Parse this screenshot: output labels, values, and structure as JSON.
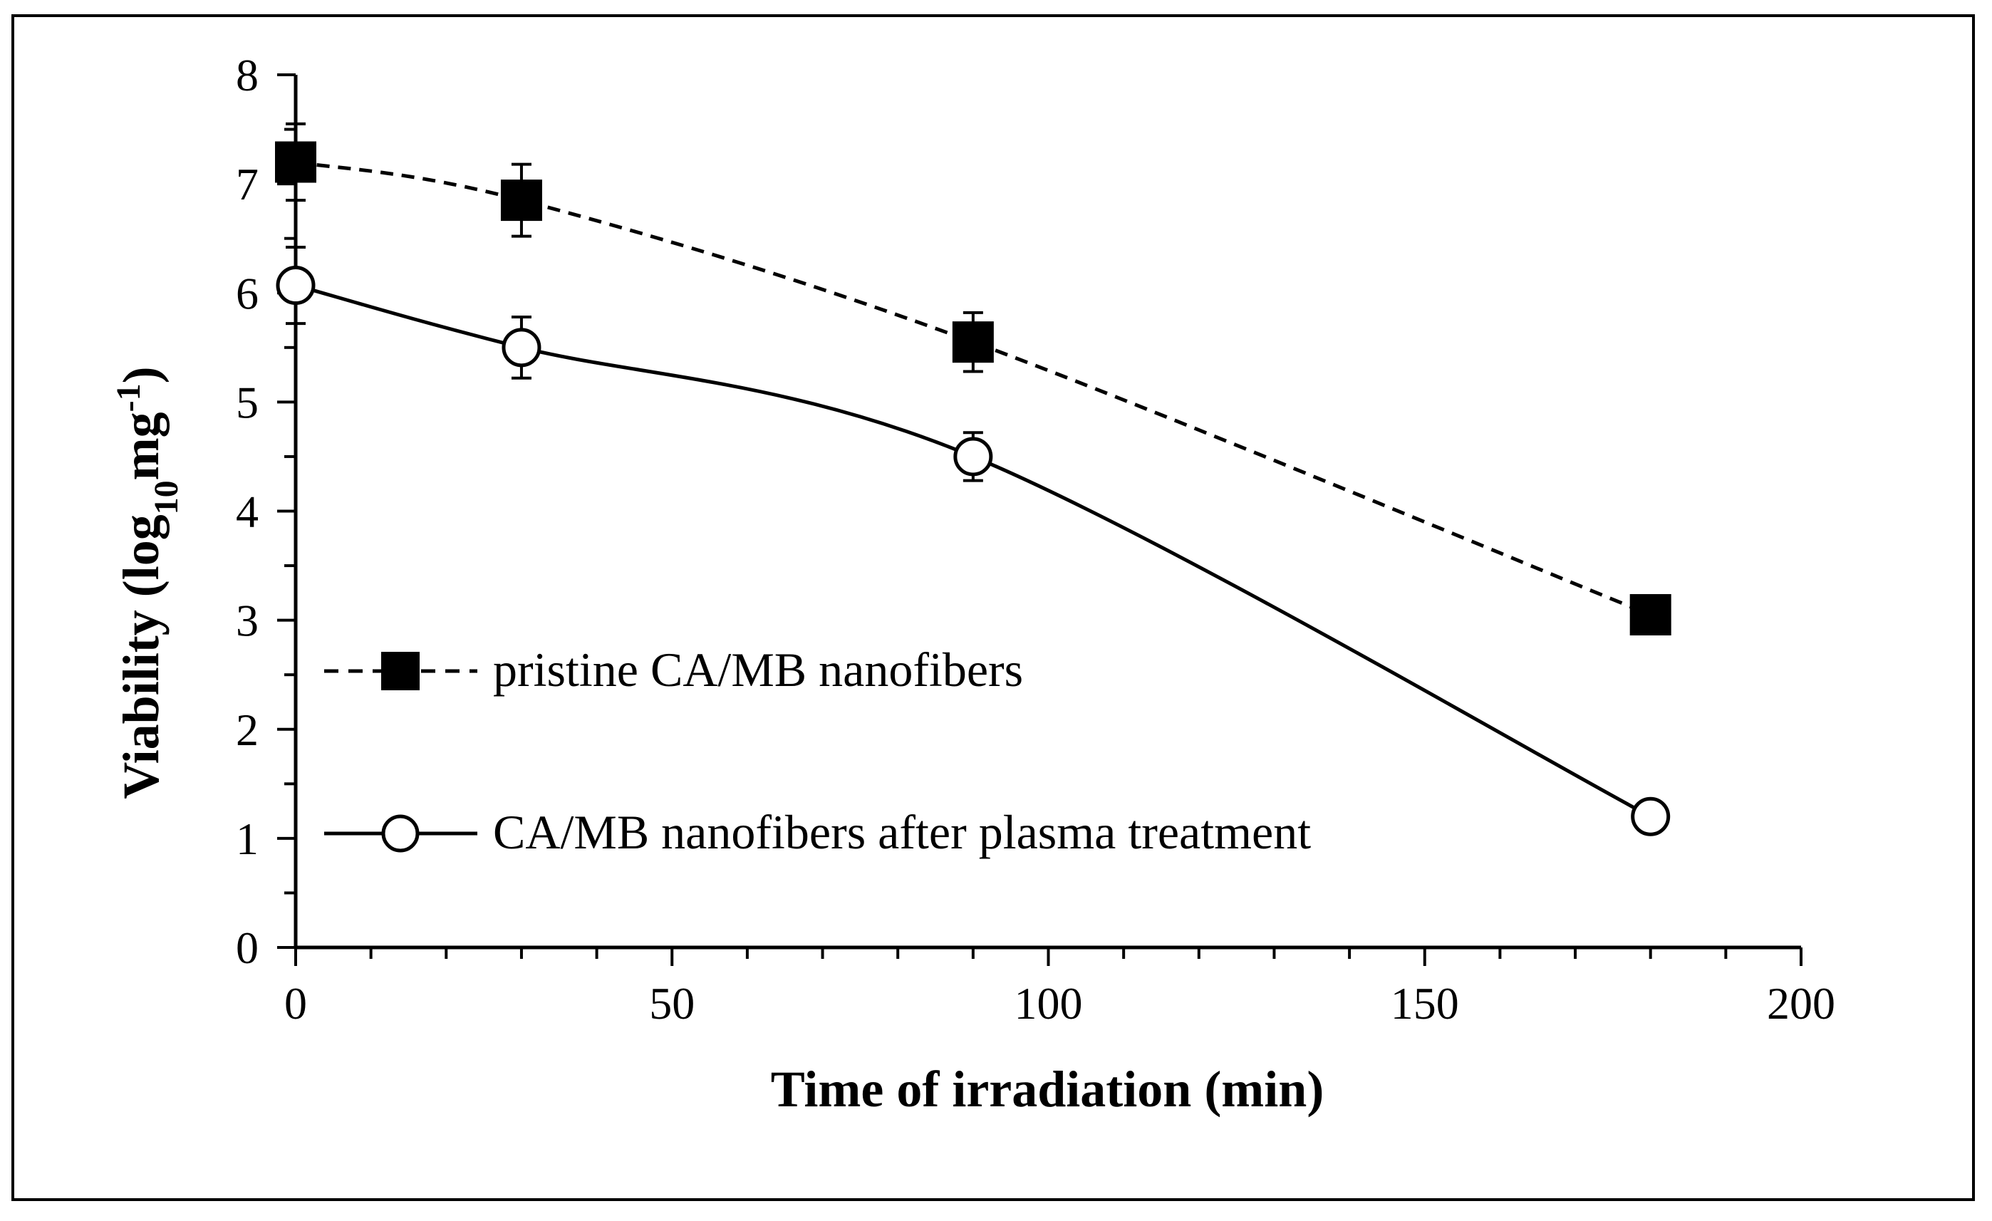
{
  "chart_data": {
    "type": "line",
    "title": "",
    "xlabel": "Time of irradiation  (min)",
    "ylabel": {
      "main": "Viability (log",
      "sub": "10",
      "unit": "mg",
      "sup": "-1",
      "close": ")"
    },
    "xlim": [
      0,
      200
    ],
    "ylim": [
      0,
      8
    ],
    "xticks": [
      0,
      50,
      100,
      150,
      200
    ],
    "yticks": [
      0,
      1,
      2,
      3,
      4,
      5,
      6,
      7,
      8
    ],
    "x_minor_step": 10,
    "y_minor_step": 0.5,
    "grid": false,
    "legend_position": "lower-left inside plot",
    "series": [
      {
        "name": "pristine CA/MB nanofibers",
        "marker": "filled-square",
        "line_style": "dashed",
        "x": [
          0,
          30,
          90,
          180
        ],
        "y": [
          7.2,
          6.85,
          5.55,
          3.05
        ],
        "err": [
          0.35,
          0.33,
          0.27,
          0.1
        ]
      },
      {
        "name": "CA/MB nanofibers after plasma treatment",
        "marker": "open-circle",
        "line_style": "solid",
        "x": [
          0,
          30,
          90,
          180
        ],
        "y": [
          6.07,
          5.5,
          4.5,
          1.2
        ],
        "err": [
          0.35,
          0.28,
          0.22,
          0.07
        ]
      }
    ]
  },
  "colors": {
    "line": "#000000",
    "background": "#ffffff"
  }
}
